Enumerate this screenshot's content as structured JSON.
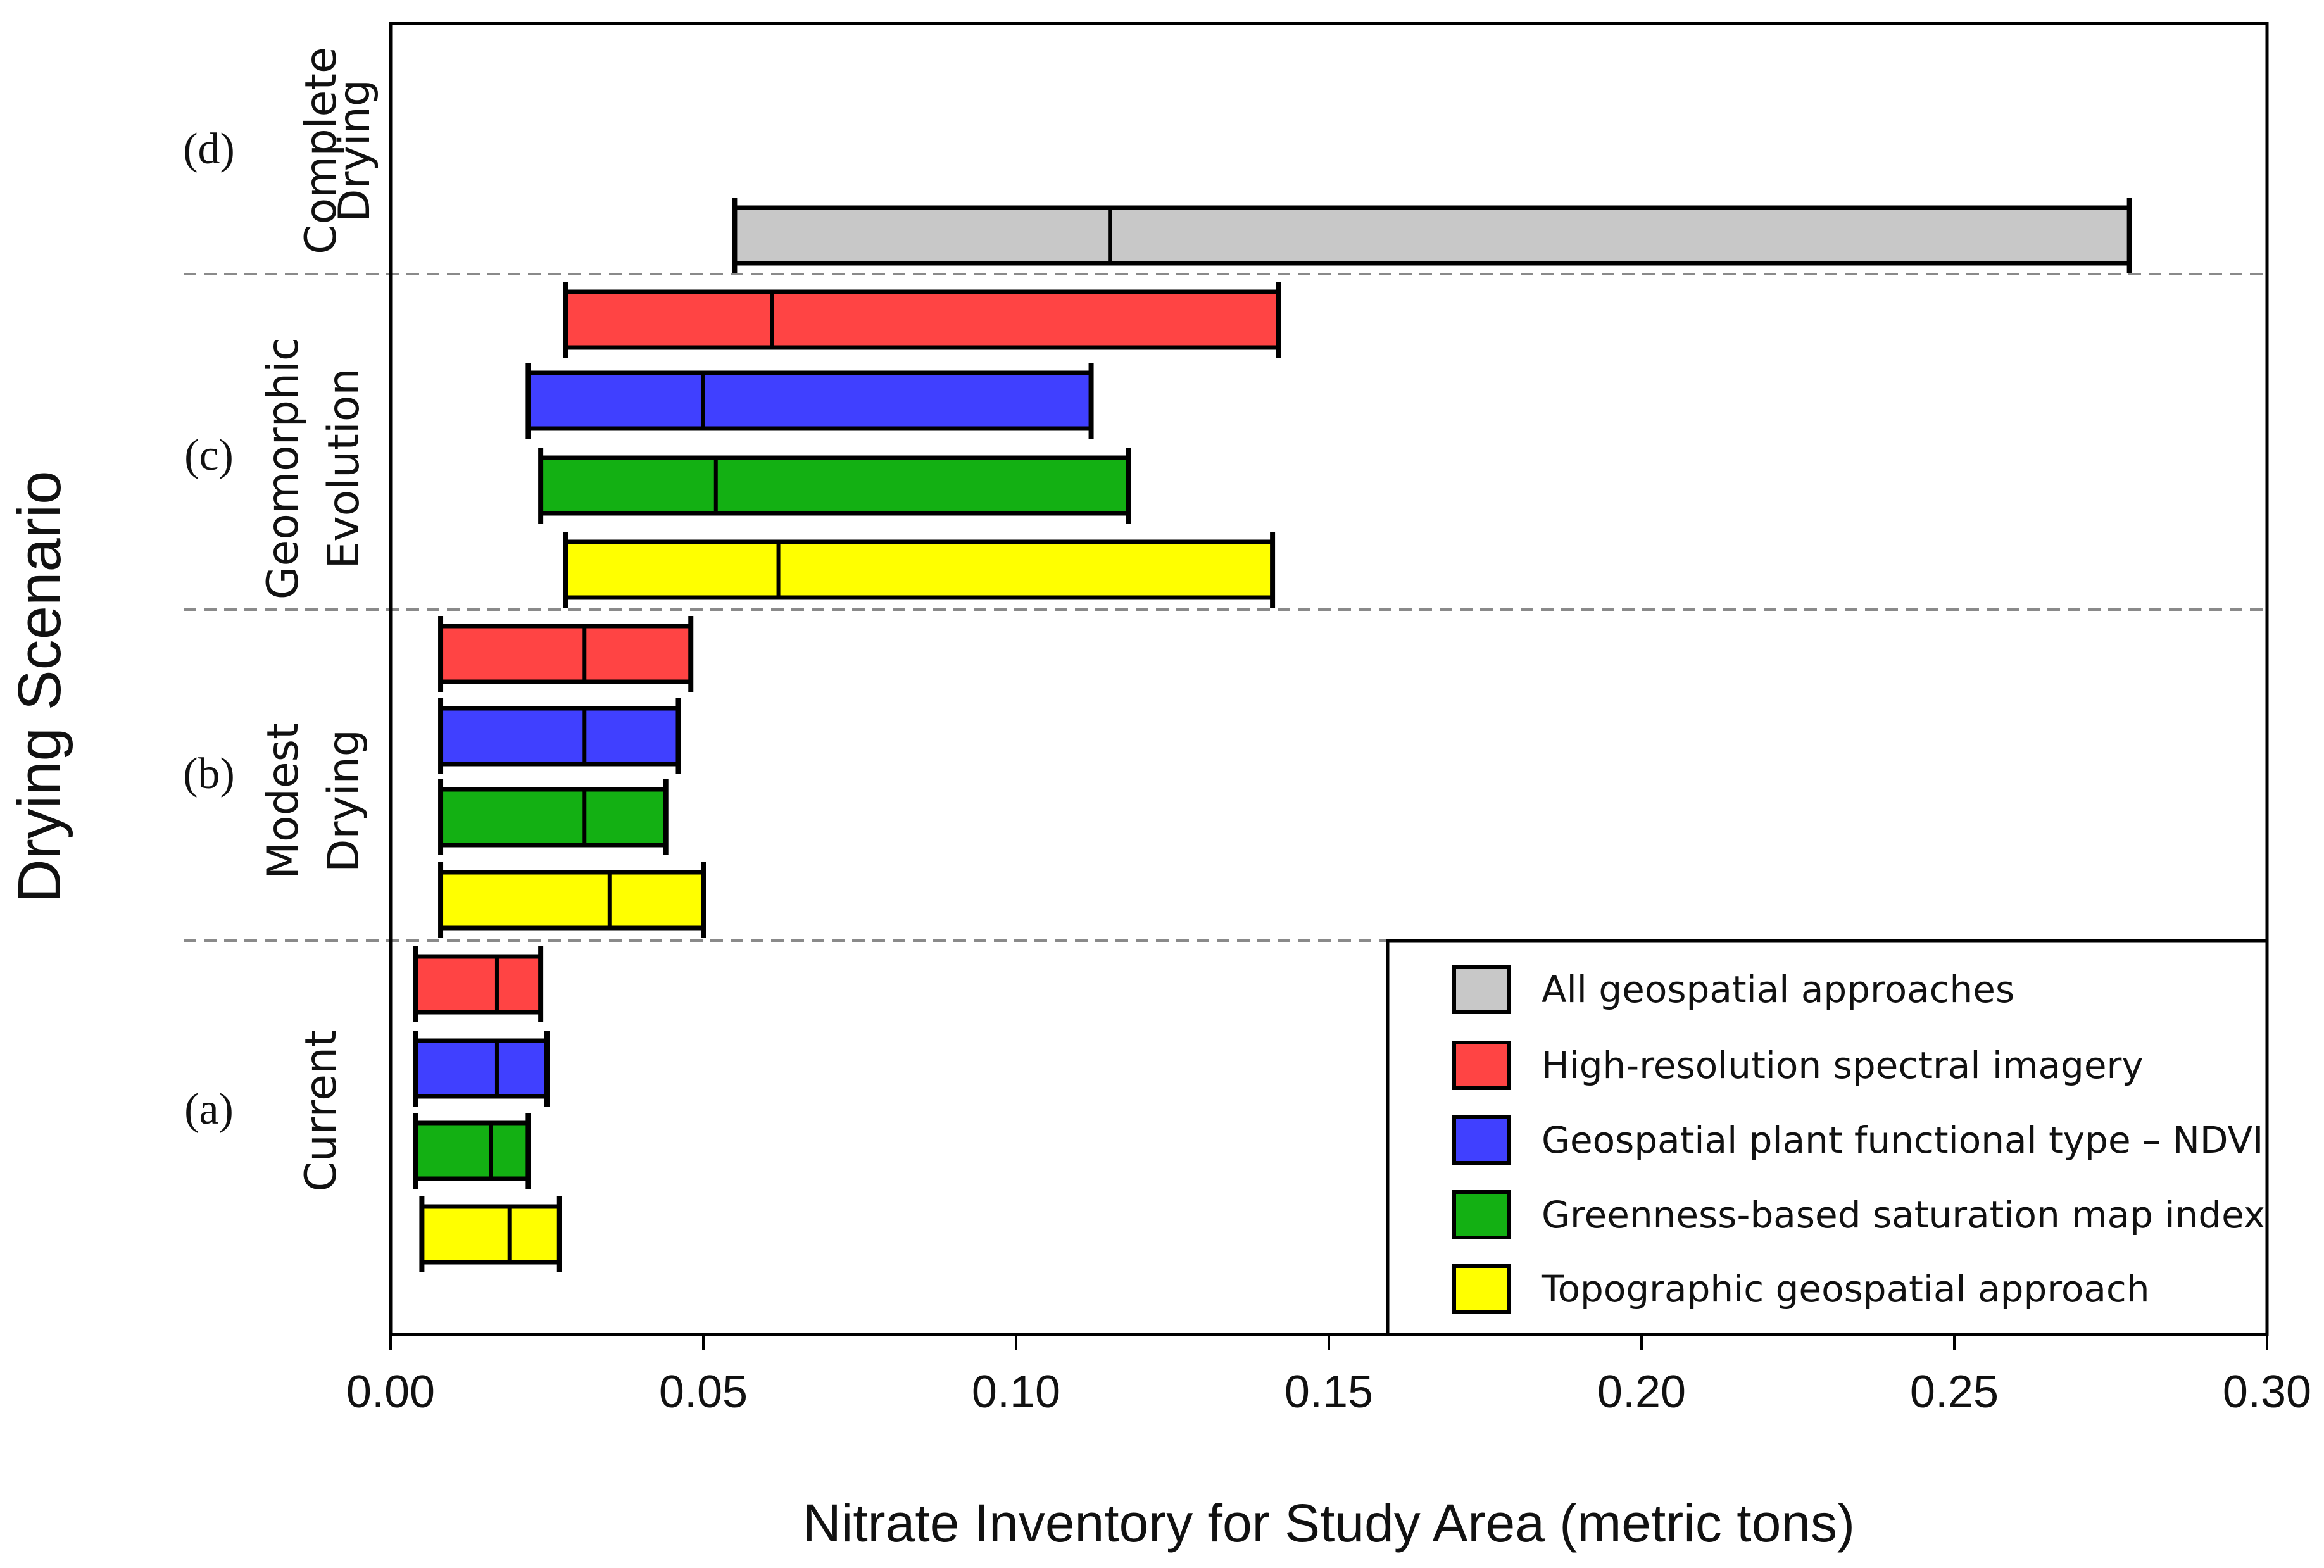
{
  "chart_data": {
    "type": "bar",
    "subtype": "horizontal-range",
    "xlabel": "Nitrate Inventory for Study Area (metric tons)",
    "ylabel": "Drying Scenario",
    "xlim": [
      0.0,
      0.3
    ],
    "x_ticks": [
      "0.00",
      "0.05",
      "0.10",
      "0.15",
      "0.20",
      "0.25",
      "0.30"
    ],
    "x_tick_values": [
      0.0,
      0.05,
      0.1,
      0.15,
      0.2,
      0.25,
      0.3
    ],
    "series": [
      {
        "key": "all",
        "name": "All geospatial approaches",
        "color": "#c8c8c8"
      },
      {
        "key": "hr",
        "name": "High-resolution spectral imagery",
        "color": "#ff4444"
      },
      {
        "key": "ndvi",
        "name": "Geospatial plant functional type – NDVI",
        "color": "#4040ff"
      },
      {
        "key": "green",
        "name": "Greenness-based saturation map index",
        "color": "#13b013"
      },
      {
        "key": "topo",
        "name": "Topographic geospatial approach",
        "color": "#ffff00"
      }
    ],
    "groups": [
      {
        "letter": "(d)",
        "label_lines": [
          "Complete",
          "Drying"
        ],
        "bars": [
          {
            "series": "all",
            "min": 0.055,
            "mid": 0.115,
            "max": 0.278
          }
        ]
      },
      {
        "letter": "(c)",
        "label_lines": [
          "Geomorphic",
          "Evolution"
        ],
        "bars": [
          {
            "series": "hr",
            "min": 0.028,
            "mid": 0.061,
            "max": 0.142
          },
          {
            "series": "ndvi",
            "min": 0.022,
            "mid": 0.05,
            "max": 0.112
          },
          {
            "series": "green",
            "min": 0.024,
            "mid": 0.052,
            "max": 0.118
          },
          {
            "series": "topo",
            "min": 0.028,
            "mid": 0.062,
            "max": 0.141
          }
        ]
      },
      {
        "letter": "(b)",
        "label_lines": [
          "Modest",
          "Drying"
        ],
        "bars": [
          {
            "series": "hr",
            "min": 0.008,
            "mid": 0.031,
            "max": 0.048
          },
          {
            "series": "ndvi",
            "min": 0.008,
            "mid": 0.031,
            "max": 0.046
          },
          {
            "series": "green",
            "min": 0.008,
            "mid": 0.031,
            "max": 0.044
          },
          {
            "series": "topo",
            "min": 0.008,
            "mid": 0.035,
            "max": 0.05
          }
        ]
      },
      {
        "letter": "(a)",
        "label_lines": [
          "Current"
        ],
        "bars": [
          {
            "series": "hr",
            "min": 0.004,
            "mid": 0.017,
            "max": 0.024
          },
          {
            "series": "ndvi",
            "min": 0.004,
            "mid": 0.017,
            "max": 0.025
          },
          {
            "series": "green",
            "min": 0.004,
            "mid": 0.016,
            "max": 0.022
          },
          {
            "series": "topo",
            "min": 0.005,
            "mid": 0.019,
            "max": 0.027
          }
        ]
      }
    ],
    "legend_position": "bottom-right",
    "group_separators": "dashed"
  }
}
